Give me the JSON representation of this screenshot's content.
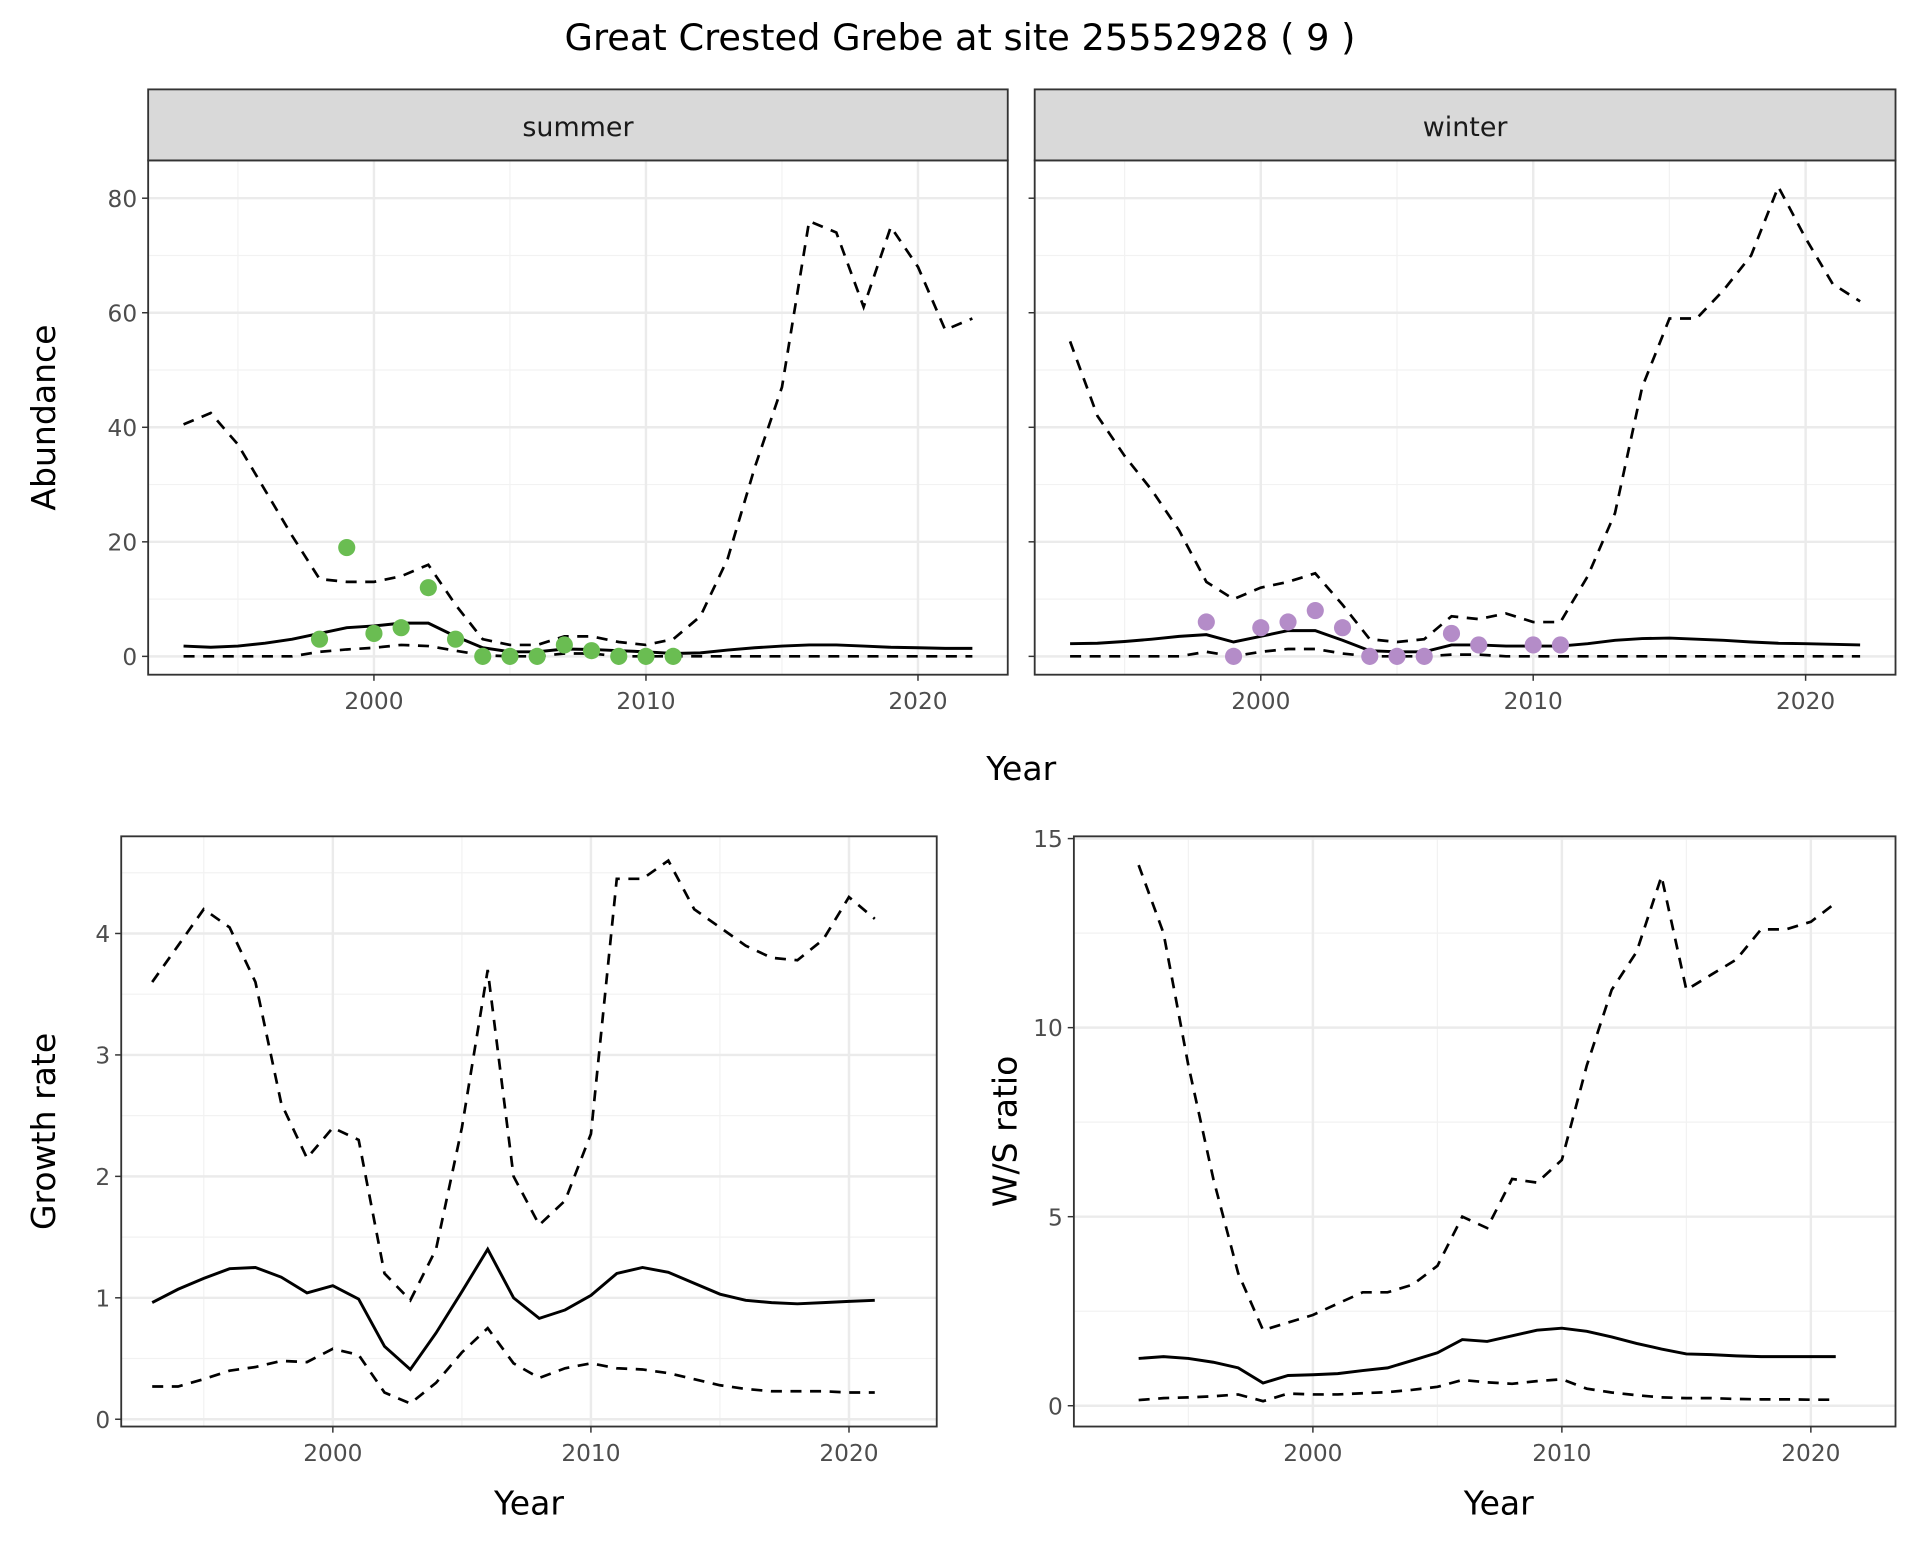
{
  "title": "Great Crested Grebe at site 25552928 ( 9 )",
  "colors": {
    "summer_points": "#6abd52",
    "winter_points": "#b48cc8",
    "line": "#000000",
    "strip_fill": "#d9d9d9"
  },
  "chart_data": [
    {
      "type": "line",
      "facet": "summer",
      "xlabel": "Year",
      "ylabel": "Abundance",
      "xlim": [
        1991.7,
        2023.3
      ],
      "ylim": [
        -3.2,
        86.6
      ],
      "xticks": [
        2000,
        2010,
        2020
      ],
      "yticks": [
        0,
        20,
        40,
        60,
        80
      ],
      "grid": true,
      "x": [
        1993,
        1994,
        1995,
        1996,
        1997,
        1998,
        1999,
        2000,
        2001,
        2002,
        2003,
        2004,
        2005,
        2006,
        2007,
        2008,
        2009,
        2010,
        2011,
        2012,
        2013,
        2014,
        2015,
        2016,
        2017,
        2018,
        2019,
        2020,
        2021,
        2022
      ],
      "upper": [
        40.5,
        42.5,
        37,
        29,
        21,
        13.5,
        13,
        13,
        14,
        16,
        9,
        3,
        2,
        2,
        3.5,
        3.5,
        2.5,
        2,
        3,
        7,
        17,
        33,
        47,
        76,
        74,
        61,
        75,
        68,
        57,
        59
      ],
      "mean": [
        1.8,
        1.6,
        1.8,
        2.3,
        3,
        4,
        5,
        5.3,
        5.8,
        5.8,
        3.5,
        1.5,
        0.8,
        0.8,
        1.3,
        1.2,
        1,
        0.8,
        0.5,
        0.6,
        1.1,
        1.5,
        1.8,
        2,
        2,
        1.8,
        1.6,
        1.5,
        1.4,
        1.4
      ],
      "lower": [
        0,
        0,
        0,
        0,
        0,
        0.8,
        1.2,
        1.5,
        2,
        1.8,
        1,
        0.2,
        0,
        0,
        0.5,
        0.5,
        0,
        0,
        0,
        0,
        0,
        0,
        0,
        0,
        0,
        0,
        0,
        0,
        0,
        0
      ],
      "points": {
        "x": [
          1998,
          1999,
          2000,
          2001,
          2002,
          2003,
          2004,
          2005,
          2006,
          2007,
          2008,
          2009,
          2010,
          2011
        ],
        "y": [
          3,
          19,
          4,
          5,
          12,
          3,
          0,
          0,
          0,
          2,
          1,
          0,
          0,
          0
        ]
      }
    },
    {
      "type": "line",
      "facet": "winter",
      "xlabel": "Year",
      "ylabel": "Abundance",
      "xlim": [
        1991.7,
        2023.3
      ],
      "ylim": [
        -3.2,
        86.6
      ],
      "xticks": [
        2000,
        2010,
        2020
      ],
      "yticks": [
        0,
        20,
        40,
        60,
        80
      ],
      "grid": true,
      "x": [
        1993,
        1994,
        1995,
        1996,
        1997,
        1998,
        1999,
        2000,
        2001,
        2002,
        2003,
        2004,
        2005,
        2006,
        2007,
        2008,
        2009,
        2010,
        2011,
        2012,
        2013,
        2014,
        2015,
        2016,
        2017,
        2018,
        2019,
        2020,
        2021,
        2022
      ],
      "upper": [
        55,
        42,
        35,
        29,
        22,
        13,
        10,
        12,
        13,
        14.5,
        9,
        3,
        2.5,
        3,
        7,
        6.5,
        7.5,
        6,
        6,
        14,
        25,
        47,
        59,
        59,
        64,
        70,
        82,
        73,
        65,
        62
      ],
      "mean": [
        2.2,
        2.3,
        2.6,
        3,
        3.5,
        3.8,
        2.5,
        3.5,
        4.5,
        4.5,
        2.8,
        1,
        0.8,
        0.8,
        2,
        2,
        1.8,
        1.8,
        1.8,
        2.2,
        2.8,
        3.1,
        3.2,
        3,
        2.8,
        2.5,
        2.3,
        2.2,
        2.1,
        2
      ],
      "lower": [
        0,
        0,
        0,
        0,
        0,
        0.8,
        0,
        0.8,
        1.3,
        1.3,
        0.5,
        0,
        0,
        0,
        0.3,
        0.3,
        0,
        0,
        0,
        0,
        0,
        0,
        0,
        0,
        0,
        0,
        0,
        0,
        0,
        0
      ],
      "points": {
        "x": [
          1998,
          1999,
          2000,
          2001,
          2002,
          2003,
          2004,
          2005,
          2006,
          2007,
          2008,
          2010,
          2011
        ],
        "y": [
          6,
          0,
          5,
          6,
          8,
          5,
          0,
          0,
          0,
          4,
          2,
          2,
          2
        ]
      }
    },
    {
      "type": "line",
      "xlabel": "Year",
      "ylabel": "Growth rate",
      "xlim": [
        1991.8,
        2023.4
      ],
      "ylim": [
        -0.06,
        4.8
      ],
      "xticks": [
        2000,
        2010,
        2020
      ],
      "yticks": [
        0,
        1,
        2,
        3,
        4
      ],
      "grid": true,
      "x": [
        1993,
        1994,
        1995,
        1996,
        1997,
        1998,
        1999,
        2000,
        2001,
        2002,
        2003,
        2004,
        2005,
        2006,
        2007,
        2008,
        2009,
        2010,
        2011,
        2012,
        2013,
        2014,
        2015,
        2016,
        2017,
        2018,
        2019,
        2020,
        2021
      ],
      "upper": [
        3.6,
        3.9,
        4.2,
        4.05,
        3.6,
        2.6,
        2.15,
        2.4,
        2.3,
        1.2,
        0.98,
        1.4,
        2.4,
        3.7,
        2.0,
        1.6,
        1.8,
        2.35,
        4.45,
        4.45,
        4.6,
        4.2,
        4.05,
        3.9,
        3.8,
        3.78,
        3.95,
        4.3,
        4.12
      ],
      "mean": [
        0.96,
        1.07,
        1.16,
        1.24,
        1.25,
        1.17,
        1.04,
        1.1,
        0.99,
        0.6,
        0.41,
        0.71,
        1.05,
        1.4,
        1.0,
        0.83,
        0.9,
        1.02,
        1.2,
        1.25,
        1.21,
        1.12,
        1.03,
        0.98,
        0.96,
        0.95,
        0.96,
        0.97,
        0.98
      ],
      "lower": [
        0.27,
        0.27,
        0.33,
        0.4,
        0.43,
        0.48,
        0.47,
        0.58,
        0.53,
        0.22,
        0.13,
        0.3,
        0.55,
        0.75,
        0.46,
        0.34,
        0.42,
        0.46,
        0.42,
        0.41,
        0.38,
        0.33,
        0.28,
        0.25,
        0.23,
        0.23,
        0.23,
        0.22,
        0.22
      ]
    },
    {
      "type": "line",
      "xlabel": "Year",
      "ylabel": "W/S ratio",
      "xlim": [
        1990.4,
        2023.4
      ],
      "ylim": [
        -0.55,
        15.06
      ],
      "xticks": [
        2000,
        2010,
        2020
      ],
      "yticks": [
        0,
        5,
        10,
        15
      ],
      "grid": true,
      "x": [
        1993,
        1994,
        1995,
        1996,
        1997,
        1998,
        1999,
        2000,
        2001,
        2002,
        2003,
        2004,
        2005,
        2006,
        2007,
        2008,
        2009,
        2010,
        2011,
        2012,
        2013,
        2014,
        2015,
        2016,
        2017,
        2018,
        2019,
        2020,
        2021
      ],
      "upper": [
        14.3,
        12.5,
        9,
        6,
        3.5,
        2,
        2.2,
        2.4,
        2.7,
        3,
        3,
        3.2,
        3.7,
        5,
        4.7,
        6,
        5.9,
        6.5,
        9,
        11,
        12,
        14,
        11,
        11.4,
        11.8,
        12.6,
        12.6,
        12.8,
        13.3
      ],
      "mean": [
        1.25,
        1.3,
        1.25,
        1.15,
        1,
        0.6,
        0.8,
        0.82,
        0.85,
        0.93,
        1,
        1.2,
        1.4,
        1.75,
        1.7,
        1.85,
        2,
        2.05,
        1.97,
        1.82,
        1.65,
        1.5,
        1.37,
        1.35,
        1.32,
        1.3,
        1.3,
        1.3,
        1.3
      ],
      "lower": [
        0.15,
        0.2,
        0.22,
        0.25,
        0.3,
        0.12,
        0.32,
        0.3,
        0.3,
        0.33,
        0.36,
        0.42,
        0.5,
        0.68,
        0.62,
        0.58,
        0.65,
        0.7,
        0.45,
        0.35,
        0.28,
        0.22,
        0.2,
        0.2,
        0.18,
        0.17,
        0.17,
        0.16,
        0.16
      ]
    }
  ]
}
